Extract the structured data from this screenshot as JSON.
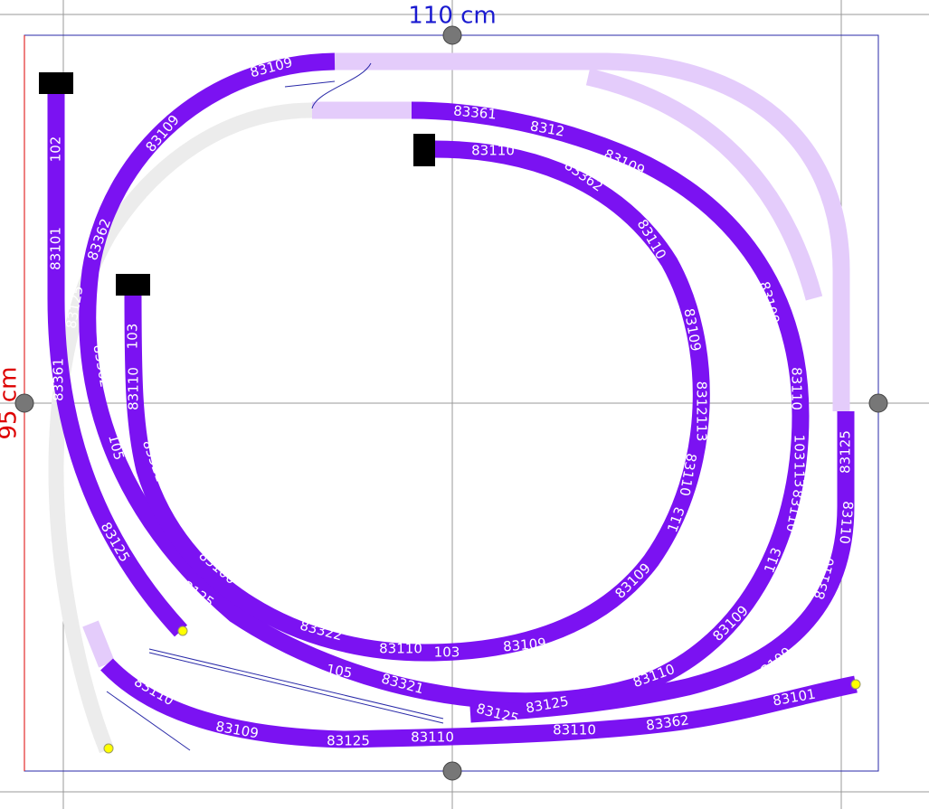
{
  "dimensions": {
    "width": "110 cm",
    "height": "95 cm"
  },
  "track_labels": [
    "83109",
    "83109",
    "102",
    "83101",
    "83362",
    "83125",
    "83361",
    "103",
    "83110",
    "83362",
    "105",
    "83321",
    "83125",
    "83106",
    "83125",
    "83322",
    "83110",
    "103",
    "83109",
    "105",
    "83321",
    "83125",
    "83125",
    "83110",
    "83109",
    "83125",
    "83110",
    "83110",
    "83362",
    "83101",
    "83361",
    "8312",
    "83110",
    "83362",
    "83109",
    "83125",
    "83110",
    "83109",
    "83109",
    "8312113",
    "83110",
    "113",
    "83109",
    "83110",
    "103",
    "113",
    "83110",
    "113",
    "83109",
    "83110",
    "83109",
    "83110",
    "83110",
    "83125"
  ]
}
